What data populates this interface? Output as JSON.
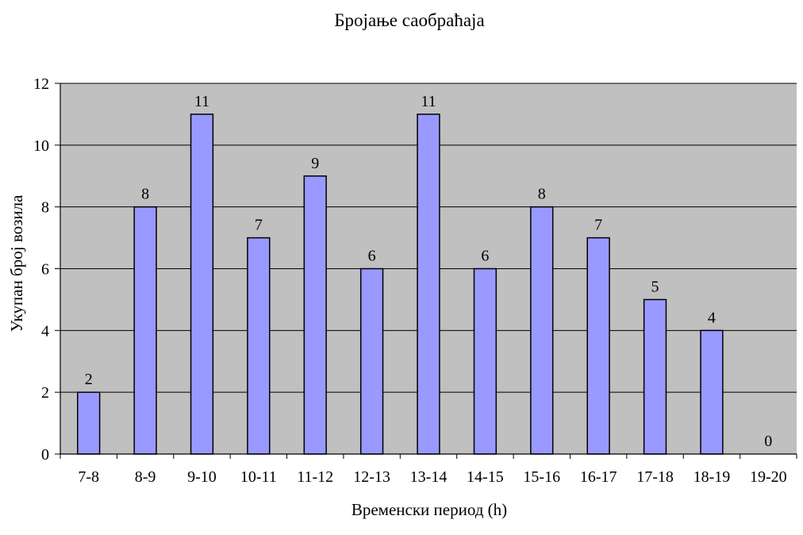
{
  "chart_data": {
    "type": "bar",
    "title": "Бројање саобраћаја",
    "xlabel": "Временски период (h)",
    "ylabel": "Укупан број возила",
    "categories": [
      "7-8",
      "8-9",
      "9-10",
      "10-11",
      "11-12",
      "12-13",
      "13-14",
      "14-15",
      "15-16",
      "16-17",
      "17-18",
      "18-19",
      "19-20"
    ],
    "values": [
      2,
      8,
      11,
      7,
      9,
      6,
      11,
      6,
      8,
      7,
      5,
      4,
      0
    ],
    "ylim": [
      0,
      12
    ],
    "yticks": [
      0,
      2,
      4,
      6,
      8,
      10,
      12
    ],
    "grid": true,
    "legend": "none",
    "data_labels": true,
    "colors": {
      "bar_fill": "#9999ff",
      "bar_stroke": "#000000",
      "plot_background": "#c0c0c0",
      "gridline": "#000000"
    }
  }
}
